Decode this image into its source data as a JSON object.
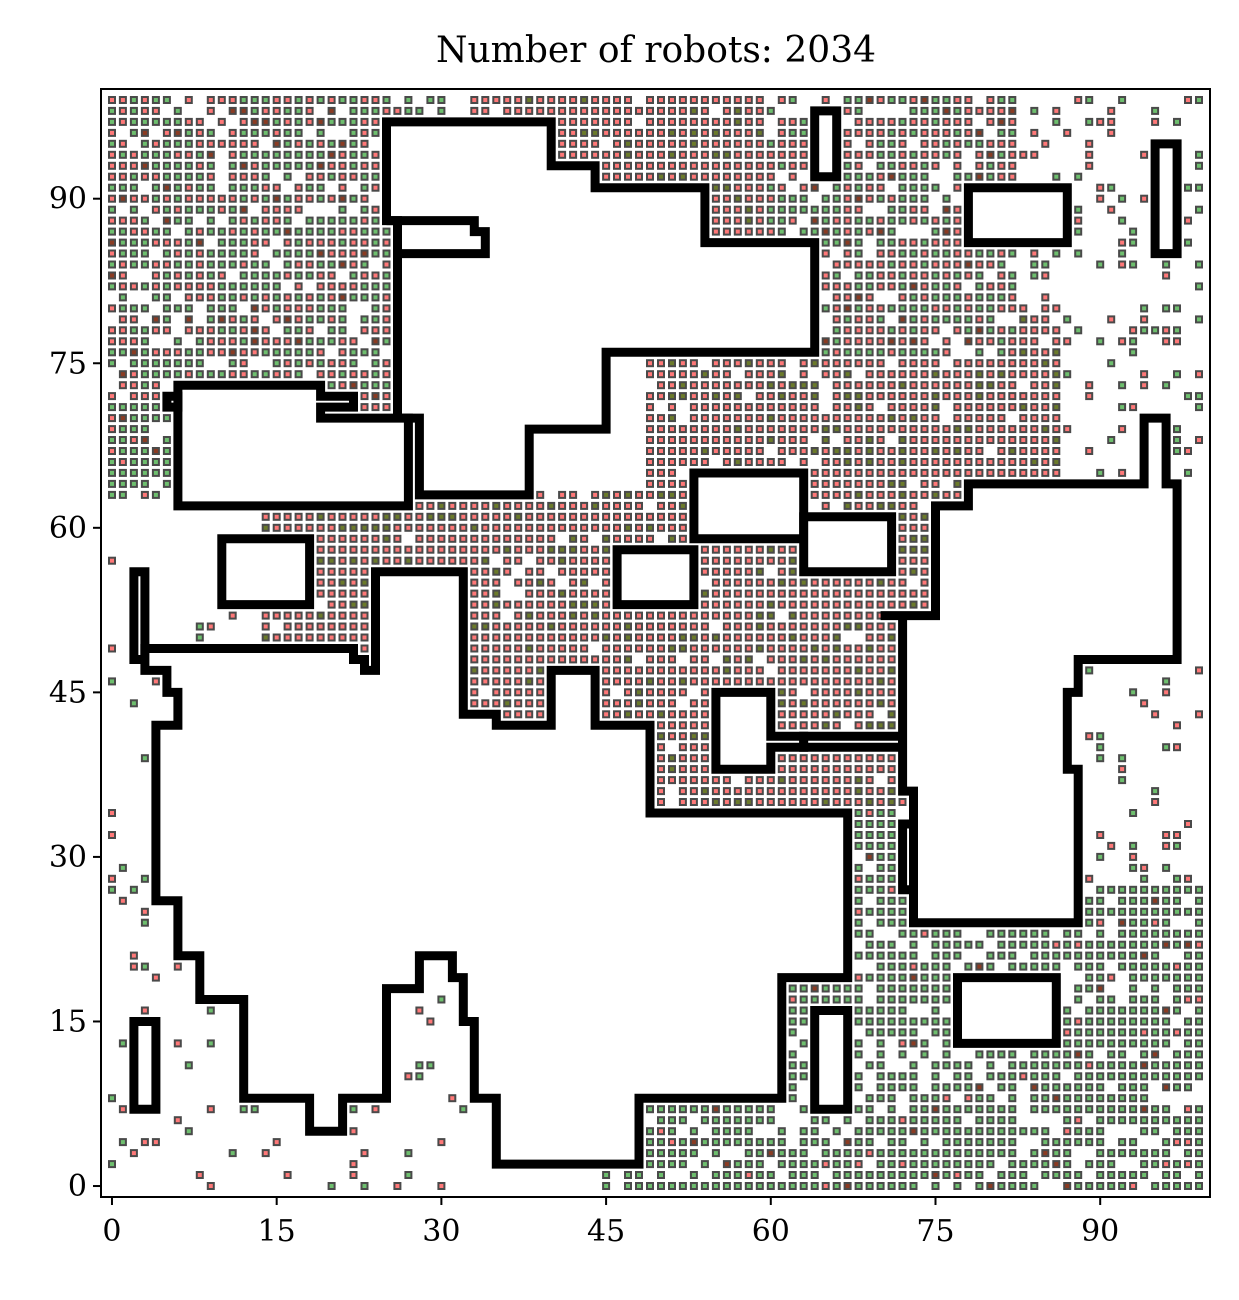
{
  "chart_data": {
    "type": "scatter",
    "title": "Number of robots: 2034",
    "xlabel": "",
    "ylabel": "",
    "xlim": [
      -1,
      100
    ],
    "ylim": [
      -1,
      100
    ],
    "xticks": [
      0,
      15,
      30,
      45,
      60,
      75,
      90
    ],
    "yticks": [
      0,
      15,
      30,
      45,
      60,
      75,
      90
    ],
    "grid": false,
    "legend": "none",
    "marker": "square",
    "colors": {
      "green_fill": "#6ebf6e",
      "red_fill": "#ff7878",
      "dark_fill": "#8a3b22",
      "olive_fill": "#6b7a2a",
      "marker_edge": "#4a4a4a",
      "obstacle_outline": "#000000"
    },
    "note_regions": {
      "green_regions": [
        {
          "x": [
            0,
            30
          ],
          "y": [
            68,
            99
          ]
        },
        {
          "x": [
            0,
            7
          ],
          "y": [
            63,
            78
          ]
        },
        {
          "x": [
            45,
            100
          ],
          "y": [
            0,
            10
          ]
        },
        {
          "x": [
            62,
            100
          ],
          "y": [
            0,
            27
          ]
        },
        {
          "x": [
            68,
            80
          ],
          "y": [
            25,
            35
          ]
        }
      ],
      "red_regions": [
        {
          "x": [
            33,
            77
          ],
          "y": [
            78,
            99
          ]
        },
        {
          "x": [
            49,
            82
          ],
          "y": [
            35,
            76
          ]
        },
        {
          "x": [
            28,
            64
          ],
          "y": [
            42,
            63
          ]
        },
        {
          "x": [
            14,
            46
          ],
          "y": [
            47,
            60
          ]
        },
        {
          "x": [
            14,
            35
          ],
          "y": [
            60,
            72
          ]
        },
        {
          "x": [
            60,
            86
          ],
          "y": [
            63,
            80
          ]
        }
      ],
      "mixed_regions": [
        {
          "x": [
            0,
            26
          ],
          "y": [
            72,
            99
          ]
        },
        {
          "x": [
            60,
            82
          ],
          "y": [
            76,
            99
          ]
        }
      ],
      "sparse_regions": [
        {
          "x": [
            78,
            100
          ],
          "y": [
            63,
            99
          ],
          "density": 0.22
        },
        {
          "x": [
            0,
            12
          ],
          "y": [
            0,
            62
          ],
          "density": 0.1
        },
        {
          "x": [
            87,
            100
          ],
          "y": [
            27,
            50
          ],
          "density": 0.18
        },
        {
          "x": [
            10,
            40
          ],
          "y": [
            0,
            18
          ],
          "density": 0.08
        }
      ]
    },
    "obstacles": [
      [
        [
          25,
          97
        ],
        [
          40,
          97
        ],
        [
          40,
          93
        ],
        [
          44,
          93
        ],
        [
          44,
          91
        ],
        [
          54,
          91
        ],
        [
          54,
          86
        ],
        [
          64,
          86
        ],
        [
          64,
          76
        ],
        [
          45,
          76
        ],
        [
          45,
          69
        ],
        [
          38,
          69
        ],
        [
          38,
          63
        ],
        [
          28,
          63
        ],
        [
          28,
          70
        ],
        [
          26,
          70
        ],
        [
          26,
          88
        ],
        [
          25,
          88
        ]
      ],
      [
        [
          25,
          88
        ],
        [
          33,
          88
        ],
        [
          33,
          87
        ],
        [
          34,
          87
        ],
        [
          34,
          85
        ],
        [
          26,
          85
        ],
        [
          26,
          88
        ]
      ],
      [
        [
          6,
          73
        ],
        [
          19,
          73
        ],
        [
          19,
          72
        ],
        [
          22,
          72
        ],
        [
          22,
          71
        ],
        [
          19,
          71
        ],
        [
          19,
          70
        ],
        [
          27,
          70
        ],
        [
          27,
          62
        ],
        [
          6,
          62
        ]
      ],
      [
        [
          5,
          72
        ],
        [
          6,
          72
        ],
        [
          6,
          71
        ],
        [
          5,
          71
        ]
      ],
      [
        [
          10,
          59
        ],
        [
          18,
          59
        ],
        [
          18,
          53
        ],
        [
          10,
          53
        ]
      ],
      [
        [
          2,
          56
        ],
        [
          3,
          56
        ],
        [
          3,
          48
        ],
        [
          2,
          48
        ]
      ],
      [
        [
          3,
          49
        ],
        [
          22,
          49
        ],
        [
          22,
          48
        ],
        [
          23,
          48
        ],
        [
          23,
          47
        ],
        [
          24,
          47
        ],
        [
          24,
          56
        ],
        [
          32,
          56
        ],
        [
          32,
          43
        ],
        [
          35,
          43
        ],
        [
          35,
          42
        ],
        [
          40,
          42
        ],
        [
          40,
          47
        ],
        [
          44,
          47
        ],
        [
          44,
          42
        ],
        [
          49,
          42
        ],
        [
          49,
          34
        ],
        [
          67,
          34
        ],
        [
          67,
          19
        ],
        [
          61,
          19
        ],
        [
          61,
          8
        ],
        [
          48,
          8
        ],
        [
          48,
          2
        ],
        [
          35,
          2
        ],
        [
          35,
          8
        ],
        [
          33,
          8
        ],
        [
          33,
          15
        ],
        [
          32,
          15
        ],
        [
          32,
          19
        ],
        [
          31,
          19
        ],
        [
          31,
          21
        ],
        [
          28,
          21
        ],
        [
          28,
          18
        ],
        [
          25,
          18
        ],
        [
          25,
          8
        ],
        [
          21,
          8
        ],
        [
          21,
          5
        ],
        [
          18,
          5
        ],
        [
          18,
          8
        ],
        [
          12,
          8
        ],
        [
          12,
          17
        ],
        [
          8,
          17
        ],
        [
          8,
          21
        ],
        [
          6,
          21
        ],
        [
          6,
          26
        ],
        [
          4,
          26
        ],
        [
          4,
          42
        ],
        [
          6,
          42
        ],
        [
          6,
          45
        ],
        [
          5,
          45
        ],
        [
          5,
          47
        ],
        [
          3,
          47
        ]
      ],
      [
        [
          46,
          58
        ],
        [
          53,
          58
        ],
        [
          53,
          53
        ],
        [
          46,
          53
        ]
      ],
      [
        [
          53,
          65
        ],
        [
          63,
          65
        ],
        [
          63,
          59
        ],
        [
          53,
          59
        ]
      ],
      [
        [
          63,
          61
        ],
        [
          71,
          61
        ],
        [
          71,
          56
        ],
        [
          63,
          56
        ]
      ],
      [
        [
          55,
          45
        ],
        [
          60,
          45
        ],
        [
          60,
          41
        ],
        [
          63,
          41
        ],
        [
          63,
          40
        ],
        [
          60,
          40
        ],
        [
          60,
          38
        ],
        [
          55,
          38
        ]
      ],
      [
        [
          63,
          41
        ],
        [
          72,
          41
        ],
        [
          72,
          40
        ],
        [
          63,
          40
        ]
      ],
      [
        [
          72,
          33
        ],
        [
          79,
          33
        ],
        [
          79,
          27
        ],
        [
          72,
          27
        ]
      ],
      [
        [
          78,
          91
        ],
        [
          87,
          91
        ],
        [
          87,
          86
        ],
        [
          78,
          86
        ]
      ],
      [
        [
          95,
          95
        ],
        [
          97,
          95
        ],
        [
          97,
          85
        ],
        [
          95,
          85
        ]
      ],
      [
        [
          64,
          98
        ],
        [
          66,
          98
        ],
        [
          66,
          92
        ],
        [
          64,
          92
        ]
      ],
      [
        [
          2,
          15
        ],
        [
          4,
          15
        ],
        [
          4,
          7
        ],
        [
          2,
          7
        ]
      ],
      [
        [
          64,
          16
        ],
        [
          67,
          16
        ],
        [
          67,
          7
        ],
        [
          64,
          7
        ]
      ],
      [
        [
          77,
          19
        ],
        [
          86,
          19
        ],
        [
          86,
          13
        ],
        [
          77,
          13
        ]
      ],
      [
        [
          70,
          52
        ],
        [
          75,
          52
        ],
        [
          75,
          62
        ],
        [
          78,
          62
        ],
        [
          78,
          64
        ],
        [
          94,
          64
        ],
        [
          94,
          70
        ],
        [
          96,
          70
        ],
        [
          96,
          64
        ],
        [
          97,
          64
        ],
        [
          97,
          48
        ],
        [
          88,
          48
        ],
        [
          88,
          45
        ],
        [
          87,
          45
        ],
        [
          87,
          38
        ],
        [
          88,
          38
        ],
        [
          88,
          24
        ],
        [
          73,
          24
        ],
        [
          73,
          36
        ],
        [
          72,
          36
        ],
        [
          72,
          52
        ]
      ]
    ]
  }
}
